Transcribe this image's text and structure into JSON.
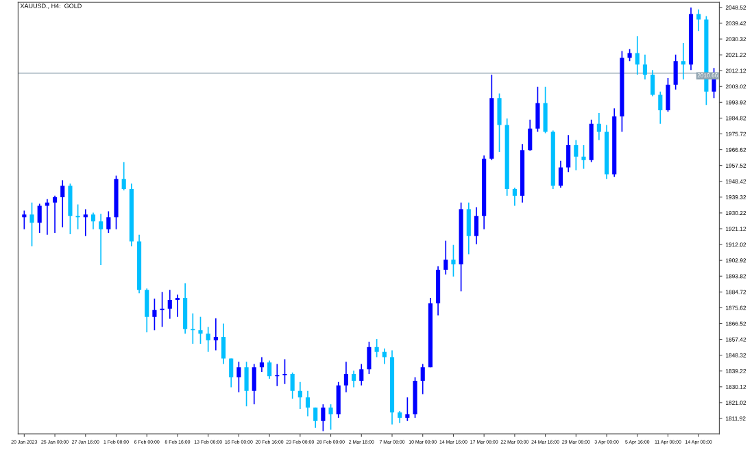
{
  "chart_data": {
    "type": "candlestick",
    "title": "XAUUSD., H4:  GOLD",
    "categories": [
      "20 Jan 2023",
      null,
      null,
      null,
      "25 Jan 00:00",
      null,
      null,
      null,
      "27 Jan 16:00",
      null,
      null,
      null,
      "1 Feb 08:00",
      null,
      null,
      null,
      "6 Feb 00:00",
      null,
      null,
      null,
      "8 Feb 16:00",
      null,
      null,
      null,
      "13 Feb 08:00",
      null,
      null,
      null,
      "16 Feb 00:00",
      null,
      null,
      null,
      "20 Feb 16:00",
      null,
      null,
      null,
      "23 Feb 08:00",
      null,
      null,
      null,
      "28 Feb 00:00",
      null,
      null,
      null,
      "2 Mar 16:00",
      null,
      null,
      null,
      "7 Mar 08:00",
      null,
      null,
      null,
      "10 Mar 00:00",
      null,
      null,
      null,
      "14 Mar 16:00",
      null,
      null,
      null,
      "17 Mar 08:00",
      null,
      null,
      null,
      "22 Mar 00:00",
      null,
      null,
      null,
      "24 Mar 16:00",
      null,
      null,
      null,
      "29 Mar 08:00",
      null,
      null,
      null,
      "3 Apr 00:00",
      null,
      null,
      null,
      "5 Apr 16:00",
      null,
      null,
      null,
      "11 Apr 08:00",
      null,
      null,
      null,
      "14 Apr 00:00",
      null,
      null
    ],
    "ohlc": [
      [
        1927.7,
        1931.6,
        1920.8,
        1929.3
      ],
      [
        1929.3,
        1936.2,
        1911.1,
        1924.6
      ],
      [
        1924.6,
        1935.5,
        1918.8,
        1934.3
      ],
      [
        1934.3,
        1938.2,
        1917.7,
        1936.2
      ],
      [
        1936.2,
        1940.1,
        1918.8,
        1939.3
      ],
      [
        1939.3,
        1949.0,
        1921.9,
        1945.9
      ],
      [
        1945.9,
        1947.1,
        1918.0,
        1928.5
      ],
      [
        1928.5,
        1935.1,
        1920.8,
        1927.7
      ],
      [
        1927.7,
        1932.4,
        1916.9,
        1929.3
      ],
      [
        1929.3,
        1930.4,
        1920.8,
        1925.4
      ],
      [
        1925.4,
        1929.7,
        1900.2,
        1920.8
      ],
      [
        1920.8,
        1931.2,
        1918.8,
        1927.7
      ],
      [
        1927.7,
        1951.7,
        1920.8,
        1949.8
      ],
      [
        1949.8,
        1959.5,
        1943.2,
        1944.0
      ],
      [
        1944.0,
        1947.1,
        1911.1,
        1913.8
      ],
      [
        1913.8,
        1917.7,
        1884.0,
        1885.9
      ],
      [
        1885.9,
        1886.7,
        1861.5,
        1870.4
      ],
      [
        1870.4,
        1880.9,
        1862.7,
        1874.3
      ],
      [
        1874.3,
        1884.7,
        1864.6,
        1875.1
      ],
      [
        1875.1,
        1885.9,
        1869.3,
        1880.1
      ],
      [
        1880.1,
        1883.2,
        1870.4,
        1881.3
      ],
      [
        1881.3,
        1889.8,
        1860.7,
        1863.4
      ],
      [
        1863.4,
        1872.4,
        1854.9,
        1862.7
      ],
      [
        1862.7,
        1870.4,
        1854.9,
        1860.7
      ],
      [
        1860.7,
        1864.6,
        1850.3,
        1856.9
      ],
      [
        1856.9,
        1869.6,
        1851.1,
        1858.8
      ],
      [
        1858.8,
        1866.5,
        1843.3,
        1846.4
      ],
      [
        1846.4,
        1846.4,
        1829.8,
        1835.6
      ],
      [
        1835.6,
        1844.5,
        1827.0,
        1841.4
      ],
      [
        1841.4,
        1844.5,
        1818.9,
        1827.8
      ],
      [
        1827.8,
        1843.3,
        1820.1,
        1841.4
      ],
      [
        1841.4,
        1847.2,
        1838.7,
        1844.1
      ],
      [
        1844.1,
        1845.2,
        1834.8,
        1836.3
      ],
      [
        1836.3,
        1843.3,
        1830.5,
        1836.7
      ],
      [
        1836.7,
        1846.0,
        1831.7,
        1837.5
      ],
      [
        1837.5,
        1838.3,
        1823.2,
        1827.8
      ],
      [
        1827.8,
        1832.9,
        1817.4,
        1824.0
      ],
      [
        1824.0,
        1827.8,
        1813.1,
        1818.1
      ],
      [
        1818.1,
        1818.1,
        1806.5,
        1810.4
      ],
      [
        1810.4,
        1820.1,
        1804.6,
        1818.1
      ],
      [
        1818.1,
        1820.1,
        1805.4,
        1814.3
      ],
      [
        1814.3,
        1832.9,
        1812.3,
        1830.9
      ],
      [
        1830.9,
        1844.5,
        1827.0,
        1837.5
      ],
      [
        1837.5,
        1839.4,
        1829.8,
        1833.6
      ],
      [
        1833.6,
        1843.3,
        1830.9,
        1840.2
      ],
      [
        1840.2,
        1856.1,
        1837.5,
        1853.0
      ],
      [
        1853.0,
        1857.6,
        1847.2,
        1850.3
      ],
      [
        1850.3,
        1852.2,
        1843.3,
        1847.2
      ],
      [
        1847.2,
        1851.1,
        1808.5,
        1815.4
      ],
      [
        1815.4,
        1816.2,
        1809.2,
        1812.3
      ],
      [
        1812.3,
        1824.0,
        1810.4,
        1814.3
      ],
      [
        1814.3,
        1835.6,
        1812.3,
        1833.6
      ],
      [
        1833.6,
        1843.3,
        1825.9,
        1841.4
      ],
      [
        1841.4,
        1881.3,
        1841.4,
        1878.2
      ],
      [
        1878.2,
        1899.5,
        1871.2,
        1897.5
      ],
      [
        1897.5,
        1914.2,
        1894.8,
        1903.3
      ],
      [
        1903.3,
        1911.8,
        1893.6,
        1900.6
      ],
      [
        1900.6,
        1936.2,
        1885.1,
        1932.4
      ],
      [
        1932.4,
        1936.2,
        1906.4,
        1916.9
      ],
      [
        1916.9,
        1933.5,
        1912.2,
        1928.5
      ],
      [
        1928.5,
        1963.3,
        1920.8,
        1961.4
      ],
      [
        1961.4,
        2009.8,
        1960.6,
        1996.3
      ],
      [
        1996.3,
        1999.0,
        1965.3,
        1980.8
      ],
      [
        1980.8,
        1984.6,
        1940.1,
        1944.0
      ],
      [
        1944.0,
        1944.8,
        1934.3,
        1940.1
      ],
      [
        1940.1,
        1969.9,
        1936.2,
        1966.4
      ],
      [
        1966.4,
        1983.9,
        1966.1,
        1978.8
      ],
      [
        1978.8,
        2002.8,
        1976.9,
        1993.5
      ],
      [
        1993.5,
        2002.8,
        1976.1,
        1976.9
      ],
      [
        1976.9,
        1977.7,
        1944.0,
        1945.9
      ],
      [
        1945.9,
        1960.2,
        1944.8,
        1956.4
      ],
      [
        1956.4,
        1975.0,
        1953.7,
        1969.2
      ],
      [
        1969.2,
        1972.2,
        1954.8,
        1962.6
      ],
      [
        1962.6,
        1969.2,
        1955.6,
        1960.6
      ],
      [
        1960.6,
        1983.9,
        1959.5,
        1981.5
      ],
      [
        1981.5,
        1987.7,
        1972.2,
        1976.9
      ],
      [
        1976.9,
        1980.8,
        1949.8,
        1952.5
      ],
      [
        1952.5,
        1990.4,
        1951.0,
        1985.8
      ],
      [
        1985.8,
        2023.4,
        1976.9,
        2019.5
      ],
      [
        2019.5,
        2024.5,
        2017.6,
        2022.2
      ],
      [
        2022.2,
        2031.9,
        2009.8,
        2015.6
      ],
      [
        2015.6,
        2021.4,
        2007.1,
        2009.8
      ],
      [
        2009.8,
        2012.5,
        1997.4,
        1998.2
      ],
      [
        1998.2,
        2000.1,
        1981.5,
        1989.3
      ],
      [
        1989.3,
        2007.9,
        1988.5,
        2004.0
      ],
      [
        2004.0,
        2021.4,
        2001.3,
        2017.6
      ],
      [
        2017.6,
        2028.0,
        2007.1,
        2015.6
      ],
      [
        2015.6,
        2048.5,
        2012.5,
        2044.7
      ],
      [
        2044.7,
        2047.4,
        2035.0,
        2041.6
      ],
      [
        2041.6,
        2043.5,
        1992.4,
        2000.1
      ],
      [
        2000.1,
        2013.7,
        1996.3,
        2010.6
      ]
    ],
    "colors": [
      "#0000ff",
      "#00bfff",
      "#0000ff",
      "#0000ff",
      "#0000ff",
      "#0000ff",
      "#00bfff",
      "#00bfff",
      "#0000ff",
      "#00bfff",
      "#00bfff",
      "#0000ff",
      "#0000ff",
      "#00bfff",
      "#00bfff",
      "#00bfff",
      "#00bfff",
      "#0000ff",
      "#0000ff",
      "#0000ff",
      "#0000ff",
      "#00bfff",
      "#00bfff",
      "#00bfff",
      "#00bfff",
      "#0000ff",
      "#00bfff",
      "#00bfff",
      "#0000ff",
      "#00bfff",
      "#0000ff",
      "#0000ff",
      "#00bfff",
      "#0000ff",
      "#0000ff",
      "#00bfff",
      "#00bfff",
      "#00bfff",
      "#00bfff",
      "#0000ff",
      "#00bfff",
      "#0000ff",
      "#0000ff",
      "#00bfff",
      "#0000ff",
      "#0000ff",
      "#00bfff",
      "#00bfff",
      "#00bfff",
      "#00bfff",
      "#0000ff",
      "#0000ff",
      "#0000ff",
      "#0000ff",
      "#0000ff",
      "#0000ff",
      "#00bfff",
      "#0000ff",
      "#00bfff",
      "#0000ff",
      "#0000ff",
      "#0000ff",
      "#00bfff",
      "#00bfff",
      "#00bfff",
      "#0000ff",
      "#0000ff",
      "#0000ff",
      "#00bfff",
      "#00bfff",
      "#0000ff",
      "#0000ff",
      "#00bfff",
      "#00bfff",
      "#0000ff",
      "#00bfff",
      "#00bfff",
      "#0000ff",
      "#0000ff",
      "#0000ff",
      "#00bfff",
      "#00bfff",
      "#00bfff",
      "#00bfff",
      "#0000ff",
      "#0000ff",
      "#00bfff",
      "#0000ff",
      "#00bfff",
      "#00bfff",
      "#0000ff"
    ],
    "ylim": [
      1803.0,
      2051.5
    ],
    "yticks": [
      1811.92,
      1821.02,
      1830.12,
      1839.22,
      1848.32,
      1857.42,
      1866.52,
      1875.62,
      1884.72,
      1893.82,
      1902.92,
      1912.02,
      1921.12,
      1930.22,
      1939.32,
      1948.42,
      1957.52,
      1966.62,
      1975.72,
      1984.82,
      1993.92,
      2003.02,
      2012.12,
      2021.22,
      2030.32,
      2039.42,
      2048.52
    ],
    "ref_lines": [
      {
        "axis": "y",
        "value": 2010.66,
        "label": "2010.66",
        "color": "#8fa3b0"
      }
    ]
  }
}
